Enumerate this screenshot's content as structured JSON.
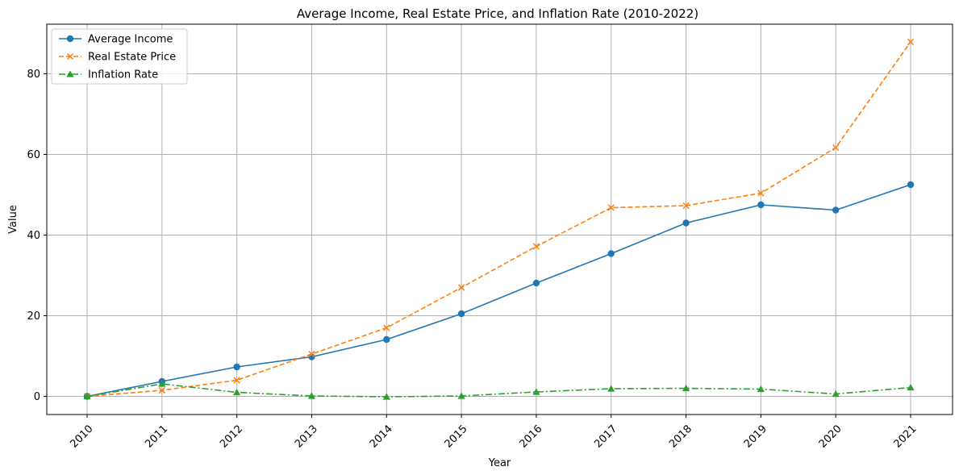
{
  "chart_data": {
    "type": "line",
    "title": "Average Income, Real Estate Price, and Inflation Rate (2010-2022)",
    "xlabel": "Year",
    "ylabel": "Value",
    "categories": [
      "2010",
      "2011",
      "2012",
      "2013",
      "2014",
      "2015",
      "2016",
      "2017",
      "2018",
      "2019",
      "2020",
      "2021"
    ],
    "ylim": [
      -4.5,
      92.3
    ],
    "yticks": [
      0,
      20,
      40,
      60,
      80
    ],
    "grid": true,
    "legend_position": "top-left",
    "series": [
      {
        "name": "Average Income",
        "color": "#1f77b4",
        "line_style": "solid",
        "marker": "circle",
        "values": [
          0,
          3.7,
          7.3,
          9.8,
          14.1,
          20.5,
          28.1,
          35.4,
          43.0,
          47.5,
          46.2,
          52.5
        ]
      },
      {
        "name": "Real Estate Price",
        "color": "#ff7f0e",
        "line_style": "dashed",
        "marker": "x",
        "values": [
          0,
          1.5,
          4.0,
          10.5,
          17.0,
          27.0,
          37.2,
          46.8,
          47.3,
          50.4,
          61.7,
          87.9
        ]
      },
      {
        "name": "Inflation Rate",
        "color": "#2ca02c",
        "line_style": "dashdot",
        "marker": "triangle",
        "values": [
          0,
          3.1,
          1.0,
          0.1,
          -0.1,
          0.1,
          1.1,
          1.9,
          2.0,
          1.8,
          0.6,
          2.2
        ]
      }
    ]
  }
}
